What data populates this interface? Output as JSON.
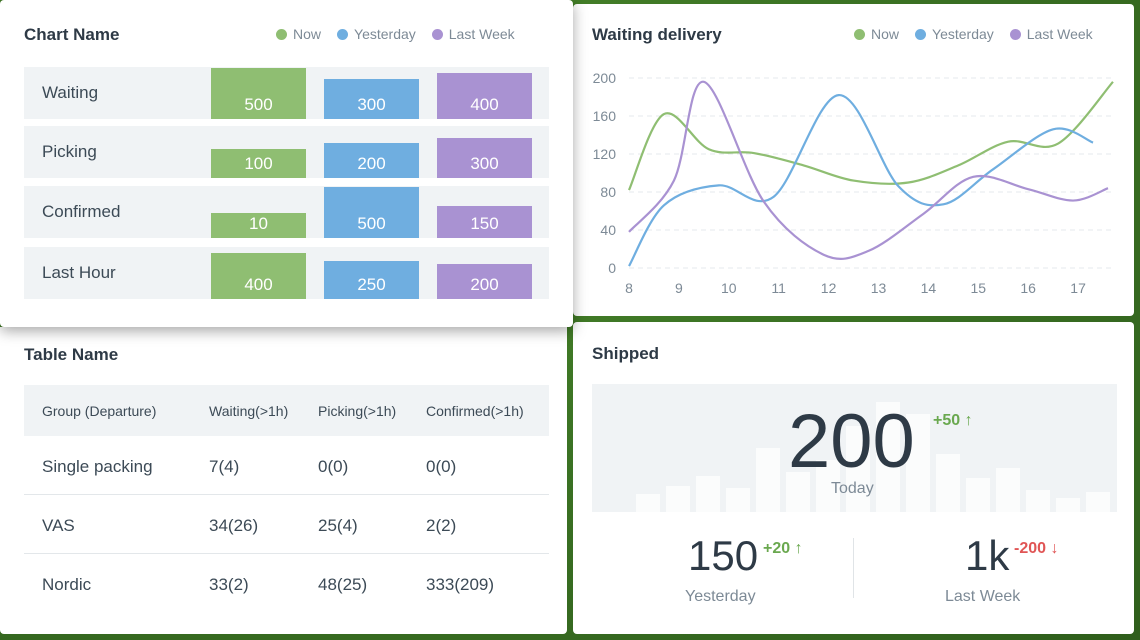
{
  "colors": {
    "now": "#8fbe72",
    "yesterday": "#6faee0",
    "last_week": "#a992d2"
  },
  "legend": {
    "now": "Now",
    "yesterday": "Yesterday",
    "last_week": "Last Week"
  },
  "bar_card": {
    "title": "Chart Name",
    "rows": [
      {
        "label": "Waiting",
        "now": 500,
        "yesterday": 300,
        "last_week": 400
      },
      {
        "label": "Picking",
        "now": 100,
        "yesterday": 200,
        "last_week": 300
      },
      {
        "label": "Confirmed",
        "now": 10,
        "yesterday": 500,
        "last_week": 150
      },
      {
        "label": "Last Hour",
        "now": 400,
        "yesterday": 250,
        "last_week": 200
      }
    ]
  },
  "chart_data": {
    "type": "line",
    "title": "Waiting delivery",
    "x_ticks": [
      8,
      9,
      10,
      11,
      12,
      13,
      14,
      15,
      16,
      17
    ],
    "y_ticks": [
      0,
      40,
      80,
      120,
      160,
      200
    ],
    "xlim": [
      8,
      17.7
    ],
    "ylim": [
      0,
      200
    ],
    "grid": true,
    "legend_position": "top-right",
    "series": [
      {
        "name": "Now",
        "color": "#8fbe72",
        "x": [
          8,
          8.7,
          9.6,
          10.5,
          11.5,
          12.5,
          13.6,
          14.6,
          15.6,
          16.6,
          17.7
        ],
        "y": [
          82,
          162,
          125,
          121,
          108,
          92,
          90,
          108,
          133,
          131,
          196
        ]
      },
      {
        "name": "Yesterday",
        "color": "#6faee0",
        "x": [
          8,
          8.7,
          9.8,
          10.9,
          12.2,
          13.4,
          14.3,
          15.3,
          16.5,
          17.3
        ],
        "y": [
          2,
          66,
          87,
          75,
          182,
          86,
          67,
          104,
          146,
          132
        ]
      },
      {
        "name": "Last Week",
        "color": "#a992d2",
        "x": [
          8,
          8.9,
          9.5,
          10.7,
          11.9,
          12.8,
          13.9,
          14.9,
          16,
          16.9,
          17.6
        ],
        "y": [
          38,
          92,
          196,
          70,
          14,
          18,
          57,
          96,
          83,
          71,
          84
        ]
      }
    ]
  },
  "table_card": {
    "title": "Table Name",
    "headers": [
      "Group (Departure)",
      "Waiting(>1h)",
      "Picking(>1h)",
      "Confirmed(>1h)"
    ],
    "rows": [
      [
        "Single packing",
        "7(4)",
        "0(0)",
        "0(0)"
      ],
      [
        "VAS",
        "34(26)",
        "25(4)",
        "2(2)"
      ],
      [
        "Nordic",
        "33(2)",
        "48(25)",
        "333(209)"
      ]
    ]
  },
  "shipped_card": {
    "title": "Shipped",
    "today": {
      "value": "200",
      "delta": "+50 ↑",
      "label": "Today"
    },
    "yesterday": {
      "value": "150",
      "delta": "+20 ↑",
      "label": "Yesterday"
    },
    "last_week": {
      "value": "1k",
      "delta": "-200 ↓",
      "label": "Last Week"
    }
  }
}
